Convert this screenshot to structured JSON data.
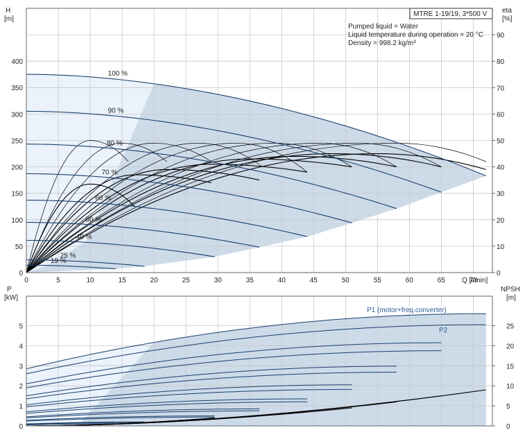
{
  "model_box": "MTRE 1-19/19, 3*500 V",
  "info": {
    "line1": "Pumped liquid = Water",
    "line2": "Liquid temperature during operation = 20 °C",
    "line3": "Density = 998.2 kg/m³"
  },
  "colors": {
    "grid": "#c8c8c8",
    "region_light": "#eaf2fb",
    "region_dark": "#cddbe9",
    "curve_blue": "#1a3f6b",
    "curve_black": "#000000",
    "label_blue": "#2a5a99"
  },
  "chart_data": [
    {
      "type": "line",
      "name": "head-efficiency",
      "xlabel": "Q [l/min]",
      "ylabel_left": "H [m]",
      "ylabel_left_unit": "H",
      "ylabel_left_bracket": "[m]",
      "ylabel_right_unit": "eta",
      "ylabel_right_bracket": "[%]",
      "xlim": [
        0,
        73
      ],
      "ylim": [
        0,
        400
      ],
      "y_right_lim": [
        0,
        80
      ],
      "x_ticks": [
        0,
        5,
        10,
        15,
        20,
        25,
        30,
        35,
        40,
        45,
        50,
        55,
        60,
        65,
        70
      ],
      "y_ticks": [
        0,
        50,
        100,
        150,
        200,
        250,
        300,
        350,
        400
      ],
      "y_right_ticks": [
        0,
        10,
        20,
        30,
        40,
        50,
        60,
        70,
        80,
        90
      ],
      "grid": true,
      "speed_curves": [
        {
          "label": "100 %",
          "h0": 375,
          "qmax": 72,
          "hmax": 183
        },
        {
          "label": "90 %",
          "h0": 305,
          "qmax": 65,
          "hmax": 152
        },
        {
          "label": "80 %",
          "h0": 243,
          "qmax": 58,
          "hmax": 121
        },
        {
          "label": "70 %",
          "h0": 187,
          "qmax": 51,
          "hmax": 94
        },
        {
          "label": "60 %",
          "h0": 137,
          "qmax": 44,
          "hmax": 68
        },
        {
          "label": "50 %",
          "h0": 95,
          "qmax": 36.5,
          "hmax": 48
        },
        {
          "label": "40 %",
          "h0": 61,
          "qmax": 29.5,
          "hmax": 30
        },
        {
          "label": "25 %",
          "h0": 24,
          "qmax": 18.5,
          "hmax": 12
        },
        {
          "label": "19 %",
          "h0": 14,
          "qmax": 14,
          "hmax": 7
        }
      ],
      "efficiency_curves": [
        {
          "qpeak": 10,
          "etapeak": 50,
          "qend": 16,
          "etaend": 42
        },
        {
          "qpeak": 15,
          "etapeak": 49,
          "qend": 22,
          "etaend": 42
        },
        {
          "qpeak": 20,
          "etapeak": 49,
          "qend": 29,
          "etaend": 42
        },
        {
          "qpeak": 27,
          "etapeak": 49,
          "qend": 37,
          "etaend": 40
        },
        {
          "qpeak": 33,
          "etapeak": 49,
          "qend": 44,
          "etaend": 38
        },
        {
          "qpeak": 39,
          "etapeak": 49,
          "qend": 51,
          "etaend": 40
        },
        {
          "qpeak": 46,
          "etapeak": 49,
          "qend": 58,
          "etaend": 40
        },
        {
          "qpeak": 52,
          "etapeak": 49,
          "qend": 65,
          "etaend": 40
        },
        {
          "qpeak": 58,
          "etapeak": 49,
          "qend": 72,
          "etaend": 42
        },
        {
          "qpeak": 10,
          "etapeak": 33.5,
          "qend": 17,
          "etaend": 25
        },
        {
          "qpeak": 17,
          "etapeak": 37,
          "qend": 29,
          "etaend": 34
        },
        {
          "qpeak": 22,
          "etapeak": 39,
          "qend": 36.5,
          "etaend": 35
        },
        {
          "qpeak": 29,
          "etapeak": 41,
          "qend": 44,
          "etaend": 38
        },
        {
          "qpeak": 35,
          "etapeak": 43,
          "qend": 51,
          "etaend": 40
        },
        {
          "qpeak": 42,
          "etapeak": 44,
          "qend": 58,
          "etaend": 40
        },
        {
          "qpeak": 48,
          "etapeak": 45,
          "qend": 65,
          "etaend": 40
        },
        {
          "qpeak": 55,
          "etapeak": 45,
          "qend": 72,
          "etaend": 39
        }
      ]
    },
    {
      "type": "line",
      "name": "power-npsh",
      "xlabel": "",
      "ylabel_left_unit": "P",
      "ylabel_left_bracket": "[kW]",
      "ylabel_right_unit": "NPSH",
      "ylabel_right_bracket": "[m]",
      "xlim": [
        0,
        73
      ],
      "ylim": [
        0,
        6
      ],
      "y_right_lim": [
        0,
        30
      ],
      "y_ticks": [
        0,
        1,
        2,
        3,
        4,
        5
      ],
      "y_right_ticks": [
        0,
        5,
        10,
        15,
        20,
        25
      ],
      "grid": true,
      "series_labels": {
        "p1": "P1 (motor+freq.converter)",
        "p2": "P2"
      },
      "power_curves": [
        {
          "p0": 2.85,
          "qmax": 72,
          "pmax": 5.6
        },
        {
          "p0": 2.6,
          "qmax": 72,
          "pmax": 5.05
        },
        {
          "p0": 2.1,
          "qmax": 65,
          "pmax": 4.15
        },
        {
          "p0": 1.9,
          "qmax": 65,
          "pmax": 3.75
        },
        {
          "p0": 1.5,
          "qmax": 58,
          "pmax": 2.98
        },
        {
          "p0": 1.35,
          "qmax": 58,
          "pmax": 2.68
        },
        {
          "p0": 1.05,
          "qmax": 51,
          "pmax": 2.05
        },
        {
          "p0": 0.95,
          "qmax": 51,
          "pmax": 1.82
        },
        {
          "p0": 0.7,
          "qmax": 44,
          "pmax": 1.35
        },
        {
          "p0": 0.62,
          "qmax": 44,
          "pmax": 1.2
        },
        {
          "p0": 0.45,
          "qmax": 36.5,
          "pmax": 0.85
        },
        {
          "p0": 0.4,
          "qmax": 36.5,
          "pmax": 0.75
        },
        {
          "p0": 0.28,
          "qmax": 29.5,
          "pmax": 0.5
        },
        {
          "p0": 0.24,
          "qmax": 29.5,
          "pmax": 0.44
        },
        {
          "p0": 0.1,
          "qmax": 18.5,
          "pmax": 0.2
        },
        {
          "p0": 0.08,
          "qmax": 18.5,
          "pmax": 0.17
        },
        {
          "p0": 0.05,
          "qmax": 14,
          "pmax": 0.11
        }
      ],
      "npsh_curves": [
        {
          "qmax": 72,
          "nmax": 9.0
        },
        {
          "qmax": 65,
          "nmax": 7.5
        },
        {
          "qmax": 58,
          "nmax": 6.0
        },
        {
          "qmax": 51,
          "nmax": 4.5
        },
        {
          "qmax": 44,
          "nmax": 3.5
        },
        {
          "qmax": 36.5,
          "nmax": 2.5
        },
        {
          "qmax": 29.5,
          "nmax": 2.0
        }
      ]
    }
  ]
}
